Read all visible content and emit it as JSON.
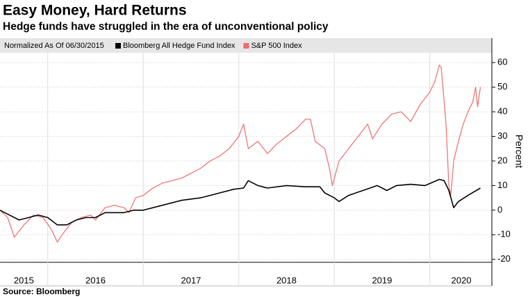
{
  "chart_data": {
    "type": "line",
    "title": "Easy Money, Hard Returns",
    "subtitle": "Hedge funds have struggled in the era of unconventional policy",
    "legend_note": "Normalized As Of 06/30/2015",
    "y_label": "Percent",
    "source": "Source: Bloomberg",
    "xlim": [
      2015.5,
      2020.65
    ],
    "xticks": [
      {
        "value": 2015.75,
        "label": "2015"
      },
      {
        "value": 2016.5,
        "label": "2016"
      },
      {
        "value": 2017.5,
        "label": "2017"
      },
      {
        "value": 2018.5,
        "label": "2018"
      },
      {
        "value": 2019.5,
        "label": "2019"
      },
      {
        "value": 2020.33,
        "label": "2020"
      }
    ],
    "ylim": [
      -21.2,
      64
    ],
    "yticks": [
      -20,
      -10,
      0,
      10,
      20,
      30,
      40,
      50,
      60
    ],
    "grid": true,
    "series": [
      {
        "name": "Bloomberg All Hedge Fund Index",
        "color": "#000000",
        "x": [
          2015.5,
          2015.6,
          2015.7,
          2015.8,
          2015.9,
          2016.0,
          2016.1,
          2016.2,
          2016.3,
          2016.4,
          2016.5,
          2016.6,
          2016.8,
          2016.9,
          2017.0,
          2017.2,
          2017.4,
          2017.6,
          2017.8,
          2017.95,
          2018.05,
          2018.1,
          2018.2,
          2018.3,
          2018.5,
          2018.7,
          2018.85,
          2018.9,
          2019.0,
          2019.05,
          2019.15,
          2019.3,
          2019.45,
          2019.55,
          2019.65,
          2019.8,
          2019.95,
          2020.1,
          2020.15,
          2020.2,
          2020.25,
          2020.3,
          2020.4,
          2020.53
        ],
        "values": [
          0,
          -2,
          -4,
          -3,
          -2,
          -3,
          -6,
          -6,
          -4,
          -3,
          -3,
          -1,
          -1,
          0,
          0,
          2,
          4,
          5,
          7,
          8.5,
          9,
          12,
          10,
          9,
          10,
          9.5,
          9.5,
          7,
          5,
          3.5,
          6,
          8,
          10,
          8,
          10,
          10.5,
          10,
          12.5,
          12,
          8,
          1,
          3.5,
          6,
          9
        ]
      },
      {
        "name": "S&P 500 Index",
        "color": "#f06b6b",
        "x": [
          2015.5,
          2015.58,
          2015.65,
          2015.75,
          2015.85,
          2015.95,
          2016.04,
          2016.1,
          2016.15,
          2016.25,
          2016.35,
          2016.45,
          2016.5,
          2016.6,
          2016.7,
          2016.8,
          2016.85,
          2016.92,
          2017.0,
          2017.1,
          2017.2,
          2017.3,
          2017.4,
          2017.5,
          2017.6,
          2017.7,
          2017.8,
          2017.9,
          2018.0,
          2018.05,
          2018.1,
          2018.2,
          2018.3,
          2018.4,
          2018.5,
          2018.6,
          2018.7,
          2018.75,
          2018.8,
          2018.9,
          2018.95,
          2018.98,
          2019.05,
          2019.15,
          2019.25,
          2019.35,
          2019.4,
          2019.5,
          2019.6,
          2019.7,
          2019.8,
          2019.9,
          2020.0,
          2020.05,
          2020.1,
          2020.12,
          2020.17,
          2020.2,
          2020.22,
          2020.25,
          2020.3,
          2020.35,
          2020.4,
          2020.45,
          2020.48,
          2020.5,
          2020.53
        ],
        "values": [
          0,
          -3,
          -11,
          -6,
          -2,
          -3,
          -8,
          -13,
          -10,
          -5,
          -3,
          -2,
          -4,
          1,
          2,
          1,
          -1,
          5,
          6,
          9,
          11,
          12,
          13,
          15,
          17,
          20,
          22,
          25,
          30,
          35,
          25,
          28,
          23,
          27,
          30,
          33,
          37,
          37,
          28,
          25,
          17,
          10,
          20,
          25,
          30,
          35,
          29,
          35,
          39,
          40,
          36,
          43,
          48,
          52,
          59,
          58,
          35,
          10,
          6,
          20,
          28,
          35,
          40,
          44,
          50,
          42,
          50
        ]
      }
    ]
  }
}
